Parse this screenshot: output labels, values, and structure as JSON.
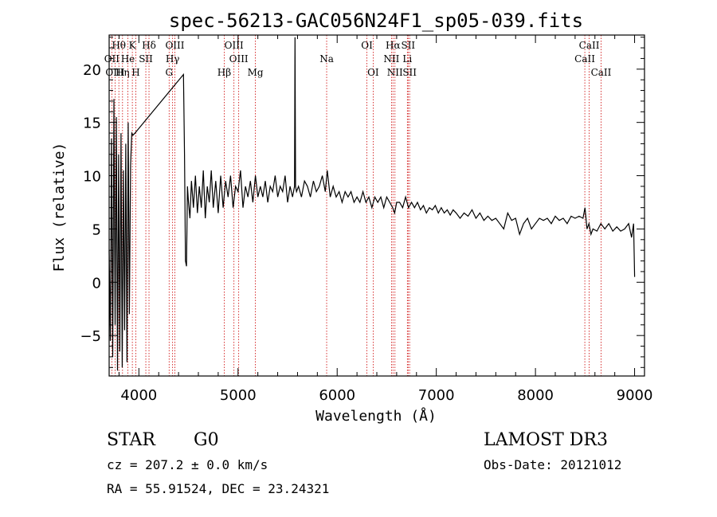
{
  "chart_data": {
    "type": "line",
    "title": "spec-56213-GAC056N24F1_sp05-039.fits",
    "xlabel": "Wavelength (Å)",
    "ylabel": "Flux (relative)",
    "xlim": [
      3700,
      9100
    ],
    "ylim": [
      -8.8,
      23.2
    ],
    "xticks": [
      4000,
      5000,
      6000,
      7000,
      8000,
      9000
    ],
    "yticks": [
      -5,
      0,
      5,
      10,
      15,
      20
    ],
    "line_color": "#000000",
    "marker_color": "#cc0000",
    "spectral_lines": [
      {
        "label": "Hθ",
        "wavelength": 3798,
        "row": 0
      },
      {
        "label": "OII",
        "wavelength": 3727,
        "row": 1
      },
      {
        "label": "OIII",
        "wavelength": 3760,
        "row": 2
      },
      {
        "label": "Hη",
        "wavelength": 3835,
        "row": 2
      },
      {
        "label": "He",
        "wavelength": 3889,
        "row": 1
      },
      {
        "label": "K",
        "wavelength": 3934,
        "row": 0
      },
      {
        "label": "H",
        "wavelength": 3969,
        "row": 2
      },
      {
        "label": "SII",
        "wavelength": 4070,
        "row": 1
      },
      {
        "label": "Hδ",
        "wavelength": 4102,
        "row": 0
      },
      {
        "label": "OIII",
        "wavelength": 4363,
        "row": 0
      },
      {
        "label": "Hγ",
        "wavelength": 4340,
        "row": 1
      },
      {
        "label": "G",
        "wavelength": 4305,
        "row": 2
      },
      {
        "label": "Hβ",
        "wavelength": 4861,
        "row": 2
      },
      {
        "label": "OIII",
        "wavelength": 4959,
        "row": 0
      },
      {
        "label": "OIII",
        "wavelength": 5007,
        "row": 1
      },
      {
        "label": "Mg",
        "wavelength": 5175,
        "row": 2
      },
      {
        "label": "Na",
        "wavelength": 5894,
        "row": 1
      },
      {
        "label": "OI",
        "wavelength": 6300,
        "row": 0
      },
      {
        "label": "OI",
        "wavelength": 6363,
        "row": 2
      },
      {
        "label": "Hα",
        "wavelength": 6563,
        "row": 0
      },
      {
        "label": "NII",
        "wavelength": 6548,
        "row": 1
      },
      {
        "label": "NII",
        "wavelength": 6583,
        "row": 2
      },
      {
        "label": "SII",
        "wavelength": 6716,
        "row": 0
      },
      {
        "label": "Li",
        "wavelength": 6708,
        "row": 1
      },
      {
        "label": "SII",
        "wavelength": 6731,
        "row": 2
      },
      {
        "label": "CaII",
        "wavelength": 8498,
        "row": 1
      },
      {
        "label": "CaII",
        "wavelength": 8542,
        "row": 0
      },
      {
        "label": "CaII",
        "wavelength": 8662,
        "row": 2
      }
    ],
    "series": [
      {
        "name": "flux",
        "x": [
          3700,
          3712,
          3724,
          3736,
          3748,
          3760,
          3772,
          3784,
          3796,
          3808,
          3820,
          3832,
          3844,
          3856,
          3868,
          3880,
          3892,
          3904,
          3916,
          3928,
          3940,
          3960,
          4450,
          4460,
          4470,
          4480,
          4490,
          4500,
          4515,
          4530,
          4550,
          4570,
          4590,
          4610,
          4630,
          4650,
          4670,
          4690,
          4710,
          4730,
          4750,
          4775,
          4800,
          4825,
          4850,
          4875,
          4900,
          4925,
          4950,
          4975,
          5000,
          5025,
          5050,
          5075,
          5100,
          5125,
          5150,
          5175,
          5200,
          5225,
          5250,
          5275,
          5300,
          5325,
          5350,
          5375,
          5400,
          5425,
          5450,
          5475,
          5500,
          5525,
          5550,
          5570,
          5575,
          5580,
          5590,
          5610,
          5640,
          5670,
          5700,
          5730,
          5760,
          5790,
          5820,
          5850,
          5880,
          5900,
          5930,
          5960,
          5990,
          6020,
          6050,
          6080,
          6110,
          6140,
          6170,
          6200,
          6230,
          6260,
          6290,
          6320,
          6350,
          6380,
          6410,
          6440,
          6470,
          6500,
          6530,
          6560,
          6580,
          6600,
          6630,
          6660,
          6690,
          6720,
          6750,
          6780,
          6810,
          6840,
          6870,
          6900,
          6930,
          6960,
          6990,
          7020,
          7050,
          7080,
          7110,
          7140,
          7170,
          7200,
          7240,
          7280,
          7320,
          7360,
          7400,
          7440,
          7480,
          7520,
          7560,
          7600,
          7640,
          7680,
          7720,
          7760,
          7800,
          7840,
          7880,
          7920,
          7960,
          8000,
          8040,
          8080,
          8120,
          8160,
          8200,
          8240,
          8280,
          8320,
          8360,
          8400,
          8440,
          8480,
          8500,
          8520,
          8540,
          8560,
          8580,
          8620,
          8660,
          8700,
          8740,
          8780,
          8820,
          8860,
          8900,
          8940,
          8970,
          8990,
          9000
        ],
        "y": [
          3.0,
          -5.5,
          13.5,
          -7.0,
          17.2,
          -4.0,
          15.5,
          -8.3,
          12.0,
          -6.5,
          14.0,
          -8.0,
          10.5,
          -4.5,
          13.0,
          -7.5,
          15.0,
          -3.0,
          11.0,
          14.0,
          13.8,
          14.0,
          19.5,
          12.0,
          2.0,
          1.5,
          9.0,
          7.5,
          6.0,
          9.5,
          7.0,
          10.0,
          6.5,
          9.0,
          7.0,
          10.5,
          6.0,
          9.0,
          7.5,
          10.5,
          7.0,
          9.5,
          6.5,
          10.0,
          7.0,
          9.5,
          8.0,
          10.0,
          7.0,
          9.0,
          8.5,
          10.5,
          7.0,
          9.0,
          8.0,
          9.5,
          7.5,
          10.0,
          8.0,
          9.0,
          8.0,
          9.5,
          7.5,
          9.0,
          8.5,
          10.0,
          8.0,
          9.0,
          8.5,
          10.0,
          7.5,
          9.0,
          8.0,
          9.0,
          23.0,
          9.0,
          8.5,
          9.0,
          8.0,
          9.5,
          9.0,
          8.0,
          9.5,
          8.5,
          9.0,
          10.0,
          8.5,
          10.5,
          8.0,
          9.0,
          8.0,
          8.5,
          7.5,
          8.5,
          8.0,
          8.5,
          7.5,
          8.0,
          7.5,
          8.5,
          7.5,
          8.0,
          7.0,
          8.0,
          7.5,
          8.0,
          7.0,
          8.0,
          7.5,
          7.0,
          6.5,
          7.5,
          7.5,
          7.0,
          8.0,
          7.0,
          7.5,
          7.0,
          7.5,
          6.8,
          7.2,
          6.5,
          7.0,
          6.8,
          7.2,
          6.5,
          7.0,
          6.5,
          6.8,
          6.3,
          6.8,
          6.5,
          6.0,
          6.5,
          6.2,
          6.8,
          6.0,
          6.5,
          5.8,
          6.2,
          5.8,
          6.0,
          5.5,
          5.0,
          6.5,
          5.8,
          6.0,
          4.5,
          5.5,
          6.0,
          5.0,
          5.5,
          6.0,
          5.8,
          6.0,
          5.5,
          6.2,
          5.8,
          6.0,
          5.5,
          6.2,
          6.0,
          6.2,
          6.0,
          7.0,
          5.0,
          5.5,
          4.5,
          5.0,
          4.8,
          5.5,
          5.0,
          5.5,
          4.8,
          5.2,
          4.8,
          5.0,
          5.5,
          4.2,
          5.5,
          0.5
        ]
      }
    ]
  },
  "footer": {
    "object_class": "STAR",
    "subclass": "G0",
    "survey": "LAMOST DR3",
    "redshift": "cz = 207.2 ± 0.0 km/s",
    "obs_date": "Obs-Date: 20121012",
    "coords": "RA =  55.91524, DEC =  23.24321"
  }
}
